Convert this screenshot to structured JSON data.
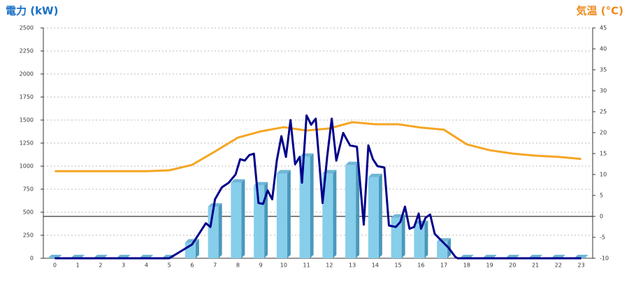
{
  "chart_data": {
    "type": "bar-line",
    "title_left": "電力 (kW)",
    "title_right": "気温 (°C)",
    "categories": [
      "0",
      "1",
      "2",
      "3",
      "4",
      "5",
      "6",
      "7",
      "8",
      "9",
      "10",
      "11",
      "12",
      "13",
      "14",
      "15",
      "16",
      "17",
      "18",
      "19",
      "20",
      "21",
      "22",
      "23"
    ],
    "ylim": [
      0,
      2500
    ],
    "yticks": [
      0,
      250,
      500,
      750,
      1000,
      1250,
      1500,
      1750,
      2000,
      2250,
      2500
    ],
    "y2lim": [
      -10,
      45
    ],
    "y2ticks": [
      -10,
      -5,
      0,
      5,
      10,
      15,
      20,
      25,
      30,
      35,
      40,
      45
    ],
    "grid": true,
    "series": [
      {
        "kind": "bar",
        "color": "#87ceeb",
        "values": [
          0,
          0,
          0,
          0,
          0,
          0,
          170,
          560,
          820,
          790,
          920,
          1100,
          920,
          1010,
          880,
          440,
          370,
          180,
          0,
          0,
          0,
          0,
          0,
          0
        ]
      },
      {
        "kind": "line",
        "color": "#00008b",
        "x": [
          0,
          5.0,
          5.5,
          6.0,
          6.3,
          6.6,
          6.8,
          7.0,
          7.3,
          7.6,
          7.9,
          8.1,
          8.3,
          8.5,
          8.7,
          8.9,
          9.1,
          9.3,
          9.5,
          9.7,
          9.9,
          10.1,
          10.3,
          10.5,
          10.7,
          10.8,
          11.0,
          11.2,
          11.4,
          11.7,
          11.9,
          12.1,
          12.3,
          12.6,
          12.9,
          13.2,
          13.5,
          13.7,
          13.9,
          14.1,
          14.4,
          14.6,
          14.9,
          15.1,
          15.3,
          15.5,
          15.7,
          15.9,
          16.0,
          16.2,
          16.4,
          16.6,
          16.9,
          17.2,
          17.5,
          17.6,
          23
        ],
        "values": [
          0,
          0,
          75,
          150,
          265,
          380,
          340,
          640,
          770,
          820,
          910,
          1075,
          1060,
          1120,
          1135,
          600,
          590,
          735,
          640,
          1060,
          1325,
          1100,
          1500,
          1020,
          1100,
          820,
          1550,
          1450,
          1515,
          600,
          1100,
          1515,
          1060,
          1360,
          1225,
          1210,
          365,
          1225,
          1075,
          1000,
          985,
          355,
          340,
          395,
          560,
          320,
          340,
          485,
          320,
          440,
          475,
          265,
          190,
          115,
          15,
          0,
          0
        ]
      },
      {
        "kind": "line",
        "axis": "y2",
        "color": "#f5a623",
        "values": [
          10.8,
          10.8,
          10.8,
          10.8,
          10.8,
          11,
          12.3,
          15.5,
          18.8,
          20.3,
          21.3,
          20.5,
          21,
          22.5,
          22,
          22,
          21.2,
          20.7,
          17.2,
          15.8,
          15,
          14.5,
          14.2,
          13.7
        ]
      }
    ]
  }
}
